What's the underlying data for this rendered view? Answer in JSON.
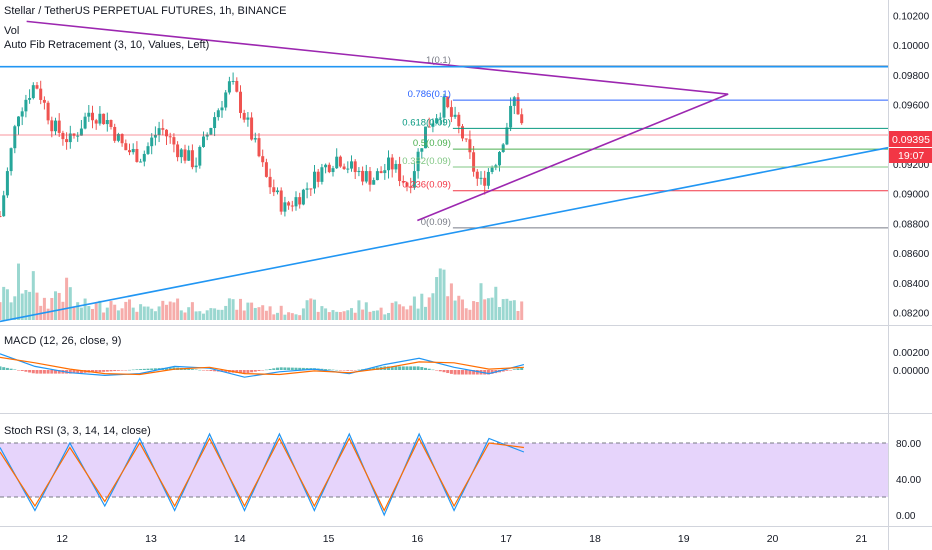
{
  "header": {
    "symbol_line": "Stellar / TetherUS PERPETUAL FUTURES, 1h, BINANCE",
    "vol_label": "Vol",
    "fib_label": "Auto Fib Retracement (3, 10, Values, Left)"
  },
  "price_axis": {
    "ticks": [
      "0.10200",
      "0.10000",
      "0.09800",
      "0.09600",
      "0.09400",
      "0.09200",
      "0.09000",
      "0.08800",
      "0.08600",
      "0.08400",
      "0.08200"
    ],
    "last_price": "0.09395",
    "countdown": "19:07",
    "last_price_color": "#f23645"
  },
  "time_axis": {
    "ticks": [
      "12",
      "13",
      "14",
      "15",
      "16",
      "17",
      "18",
      "19",
      "20",
      "21"
    ]
  },
  "fib_levels": [
    {
      "label": "1(0.1)",
      "color": "#787b86"
    },
    {
      "label": "0.786(0.1)",
      "color": "#2962ff"
    },
    {
      "label": "0.618(0.09)",
      "color": "#089981"
    },
    {
      "label": "0.5(0.09)",
      "color": "#4caf50"
    },
    {
      "label": "0.382(0.09)",
      "color": "#81c784"
    },
    {
      "label": "0.236(0.09)",
      "color": "#f23645"
    },
    {
      "label": "0(0.09)",
      "color": "#787b86"
    }
  ],
  "macd": {
    "label": "MACD (12, 26, close, 9)",
    "ticks": [
      "0.00200",
      "0.00000"
    ]
  },
  "stoch": {
    "label": "Stoch RSI (3, 3, 14, 14, close)",
    "ticks": [
      "80.00",
      "40.00",
      "0.00"
    ]
  },
  "colors": {
    "up": "#26a69a",
    "down": "#ef5350",
    "triangle": "#9c27b0",
    "trendline": "#2196f3",
    "macd_line": "#2196f3",
    "signal_line": "#ff6d00",
    "stoch_k": "#2196f3",
    "stoch_d": "#ff6d00",
    "band_fill": "#e6d4fb"
  },
  "chart_data": {
    "type": "candlestick",
    "x_axis": "day of month",
    "y_axis": "price (USDT)",
    "ylim": [
      0.0815,
      0.1025
    ],
    "xlim": [
      11.3,
      21.3
    ],
    "trendlines": [
      {
        "name": "triangle upper",
        "x": [
          11.6,
          19.5
        ],
        "y": [
          0.1016,
          0.0967
        ]
      },
      {
        "name": "triangle lower",
        "x": [
          16.0,
          19.5
        ],
        "y": [
          0.0882,
          0.0967
        ]
      },
      {
        "name": "rising support",
        "x": [
          11.3,
          21.3
        ],
        "y": [
          0.0814,
          0.0931
        ]
      },
      {
        "name": "horizontal resistance",
        "x": [
          11.3,
          21.3
        ],
        "y": [
          0.09855,
          0.09855
        ]
      }
    ],
    "fibonacci": [
      {
        "level": 1,
        "price": 0.0986
      },
      {
        "level": 0.786,
        "price": 0.0963
      },
      {
        "level": 0.618,
        "price": 0.0944
      },
      {
        "level": 0.5,
        "price": 0.093
      },
      {
        "level": 0.382,
        "price": 0.0918
      },
      {
        "level": 0.236,
        "price": 0.0902
      },
      {
        "level": 0,
        "price": 0.0877
      }
    ],
    "close_series": {
      "x": [
        11.3,
        11.5,
        11.7,
        11.9,
        12.1,
        12.3,
        12.5,
        12.7,
        12.9,
        13.1,
        13.3,
        13.5,
        13.7,
        13.9,
        14.1,
        14.3,
        14.5,
        14.7,
        14.9,
        15.1,
        15.3,
        15.5,
        15.7,
        15.9,
        16.1,
        16.3,
        16.5,
        16.7,
        16.9,
        17.1,
        17.2
      ],
      "y": [
        0.0885,
        0.0955,
        0.0975,
        0.0945,
        0.0935,
        0.0955,
        0.095,
        0.093,
        0.0925,
        0.0945,
        0.093,
        0.092,
        0.095,
        0.0975,
        0.0945,
        0.091,
        0.089,
        0.09,
        0.0915,
        0.0925,
        0.0915,
        0.091,
        0.092,
        0.0905,
        0.0945,
        0.096,
        0.094,
        0.0905,
        0.0925,
        0.0965,
        0.09395
      ]
    },
    "volume": [
      5,
      8,
      4,
      6,
      3,
      3,
      4,
      3,
      2,
      3,
      3,
      2,
      4,
      3,
      3,
      2,
      2,
      3,
      2,
      2,
      3,
      2,
      3,
      4,
      9,
      6,
      3,
      7,
      4,
      3,
      2
    ],
    "stoch_k": [
      75,
      5,
      80,
      10,
      85,
      5,
      90,
      5,
      90,
      5,
      90,
      0,
      90,
      5,
      85,
      70
    ],
    "stoch_d": [
      70,
      10,
      75,
      15,
      80,
      10,
      85,
      10,
      85,
      10,
      85,
      5,
      85,
      10,
      80,
      75
    ],
    "macd": [
      0.0018,
      0.0004,
      -0.0003,
      -0.0006,
      -0.0004,
      0.0004,
      0.0002,
      -0.0008,
      -0.0002,
      0.0001,
      -0.0004,
      0.0006,
      0.0013,
      0.0003,
      -0.0004,
      0.0006
    ],
    "signal": [
      0.0014,
      0.0008,
      0.0001,
      -0.0004,
      -0.0005,
      0.0001,
      0.0003,
      -0.0004,
      -0.0005,
      -0.0001,
      -0.0003,
      0.0002,
      0.0009,
      0.0008,
      0.0001,
      0.0003
    ]
  }
}
